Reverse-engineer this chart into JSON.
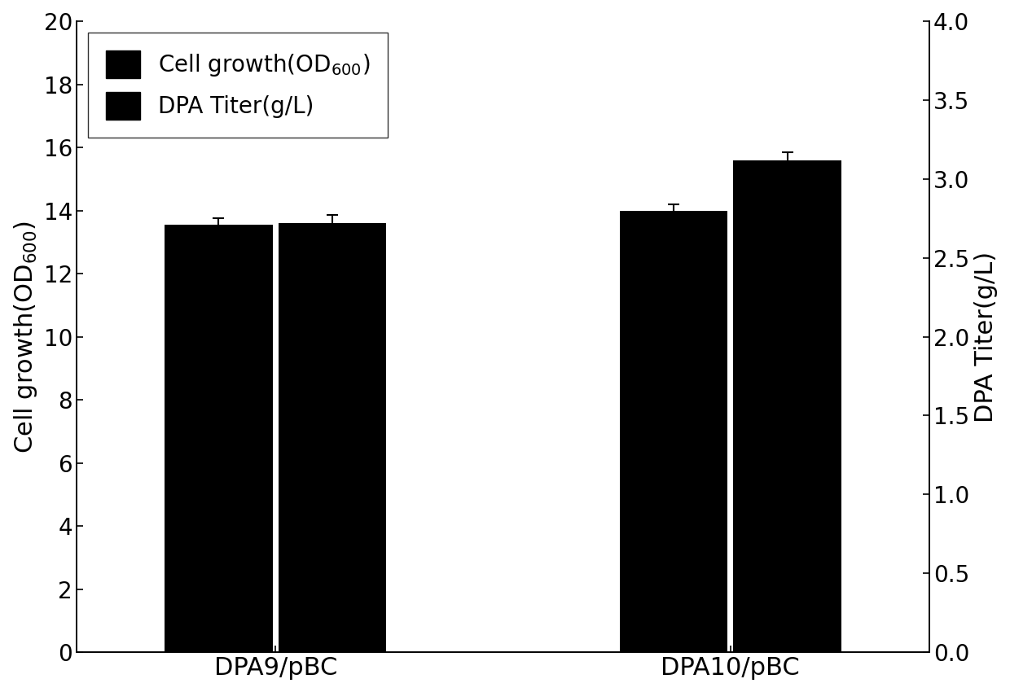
{
  "categories": [
    "DPA9/pBC",
    "DPA10/pBC"
  ],
  "cell_growth": [
    13.55,
    14.0
  ],
  "cell_growth_err": [
    0.2,
    0.2
  ],
  "dpa_titer": [
    2.72,
    3.12
  ],
  "dpa_titer_err": [
    0.05,
    0.05
  ],
  "bar_color": "#000000",
  "left_ylabel": "Cell growth(OD$_{600}$)",
  "right_ylabel": "DPA Titer(g/L)",
  "left_ylim": [
    0,
    20
  ],
  "right_ylim": [
    0,
    4.0
  ],
  "left_yticks": [
    0,
    2,
    4,
    6,
    8,
    10,
    12,
    14,
    16,
    18,
    20
  ],
  "right_yticks": [
    0.0,
    0.5,
    1.0,
    1.5,
    2.0,
    2.5,
    3.0,
    3.5,
    4.0
  ],
  "legend_labels": [
    "Cell growth(OD$_{600}$)",
    "DPA Titer(g/L)"
  ],
  "bar_width": 0.38,
  "figsize": [
    12.4,
    8.5
  ],
  "dpi": 100,
  "font_size": 22,
  "tick_font_size": 20,
  "legend_font_size": 20
}
